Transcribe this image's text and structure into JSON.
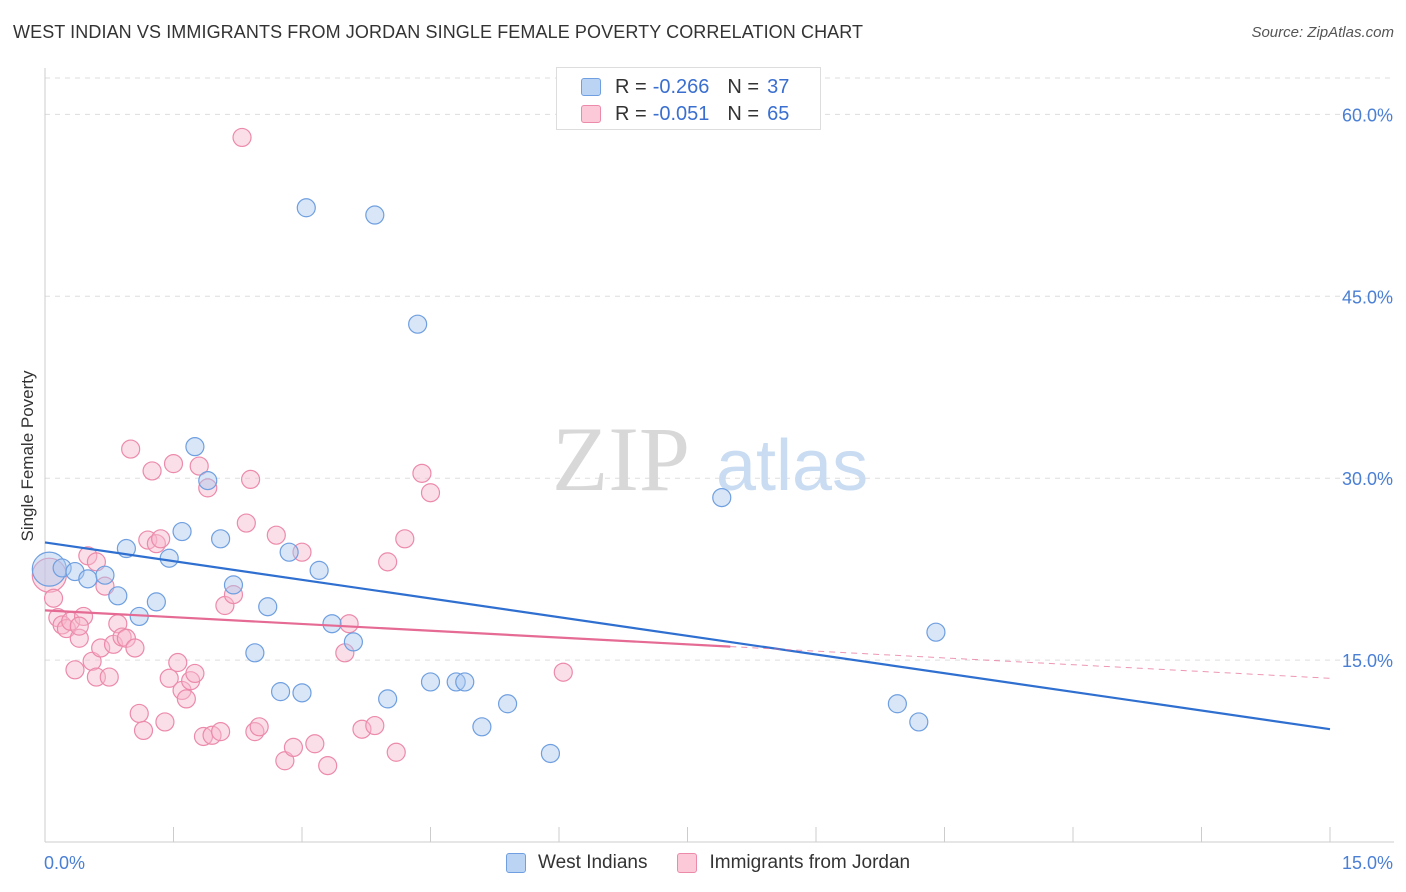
{
  "title": "WEST INDIAN VS IMMIGRANTS FROM JORDAN SINGLE FEMALE POVERTY CORRELATION CHART",
  "source": "Source: ZipAtlas.com",
  "watermark": {
    "zip": "ZIP",
    "atlas": "atlas"
  },
  "colors": {
    "blue_fill": "#a9c8f0",
    "blue_stroke": "#6f9fe0",
    "blue_line": "#2f6fd0",
    "pink_fill": "#f7b8cc",
    "pink_stroke": "#ec8aaa",
    "pink_line": "#e56a94",
    "tick_text": "#4a7fd4",
    "grid": "#dddddd"
  },
  "legend": {
    "rows": [
      {
        "r_label": "R =",
        "r_value": "-0.266",
        "n_label": "N =",
        "n_value": "37"
      },
      {
        "r_label": "R =",
        "r_value": "-0.051",
        "n_label": "N =",
        "n_value": "65"
      }
    ]
  },
  "chart_data": {
    "type": "scatter",
    "title": "WEST INDIAN VS IMMIGRANTS FROM JORDAN SINGLE FEMALE POVERTY CORRELATION CHART",
    "xlabel": "",
    "ylabel": "Single Female Poverty",
    "xlim": [
      0,
      15
    ],
    "ylim": [
      0,
      63
    ],
    "x_tick_labels": [
      "0.0%",
      "15.0%"
    ],
    "y_ticks": [
      {
        "value": 15,
        "label": "15.0%"
      },
      {
        "value": 30,
        "label": "30.0%"
      },
      {
        "value": 45,
        "label": "45.0%"
      },
      {
        "value": 60,
        "label": "60.0%"
      }
    ],
    "series": [
      {
        "name": "West Indians",
        "r": -0.266,
        "n": 37,
        "trend": {
          "x0": 0,
          "y0": 24.7,
          "x1": 15,
          "y1": 9.3,
          "solid_until": 15
        },
        "points": [
          [
            0.05,
            22.5,
            "big"
          ],
          [
            0.2,
            22.6
          ],
          [
            0.35,
            22.3
          ],
          [
            0.5,
            21.7
          ],
          [
            0.7,
            22.0
          ],
          [
            0.85,
            20.3
          ],
          [
            0.95,
            24.2
          ],
          [
            1.1,
            18.6
          ],
          [
            1.3,
            19.8
          ],
          [
            1.45,
            23.4
          ],
          [
            1.6,
            25.6
          ],
          [
            1.75,
            32.6
          ],
          [
            1.9,
            29.8
          ],
          [
            2.05,
            25.0
          ],
          [
            2.2,
            21.2
          ],
          [
            2.45,
            15.6
          ],
          [
            2.6,
            19.4
          ],
          [
            2.75,
            12.4
          ],
          [
            2.85,
            23.9
          ],
          [
            3.0,
            12.3
          ],
          [
            3.05,
            52.3
          ],
          [
            3.2,
            22.4
          ],
          [
            3.35,
            18.0
          ],
          [
            3.6,
            16.5
          ],
          [
            3.85,
            51.7
          ],
          [
            4.0,
            11.8
          ],
          [
            4.35,
            42.7
          ],
          [
            4.5,
            13.2
          ],
          [
            4.8,
            13.2
          ],
          [
            4.9,
            13.2
          ],
          [
            5.1,
            9.5
          ],
          [
            5.4,
            11.4
          ],
          [
            5.9,
            7.3
          ],
          [
            7.9,
            28.4
          ],
          [
            9.95,
            11.4
          ],
          [
            10.2,
            9.9
          ],
          [
            10.4,
            17.3
          ]
        ]
      },
      {
        "name": "Immigrants from Jordan",
        "r": -0.051,
        "n": 65,
        "trend": {
          "x0": 0,
          "y0": 19.1,
          "x1": 15,
          "y1": 13.5,
          "solid_until": 8.0
        },
        "points": [
          [
            0.05,
            22.0,
            "big"
          ],
          [
            0.1,
            20.1
          ],
          [
            0.15,
            18.5
          ],
          [
            0.2,
            17.9
          ],
          [
            0.25,
            17.6
          ],
          [
            0.3,
            18.2
          ],
          [
            0.35,
            14.2
          ],
          [
            0.4,
            16.8
          ],
          [
            0.45,
            18.6
          ],
          [
            0.5,
            23.6
          ],
          [
            0.55,
            14.9
          ],
          [
            0.6,
            13.6
          ],
          [
            0.65,
            16.0
          ],
          [
            0.7,
            21.1
          ],
          [
            0.75,
            13.6
          ],
          [
            0.8,
            16.3
          ],
          [
            0.85,
            18.0
          ],
          [
            0.9,
            16.9
          ],
          [
            0.95,
            16.8
          ],
          [
            1.0,
            32.4
          ],
          [
            1.05,
            16.0
          ],
          [
            1.1,
            10.6
          ],
          [
            1.15,
            9.2
          ],
          [
            1.2,
            24.9
          ],
          [
            1.25,
            30.6
          ],
          [
            1.3,
            24.6
          ],
          [
            1.35,
            25.0
          ],
          [
            1.4,
            9.9
          ],
          [
            1.45,
            13.5
          ],
          [
            1.5,
            31.2
          ],
          [
            1.55,
            14.8
          ],
          [
            1.6,
            12.5
          ],
          [
            1.65,
            11.8
          ],
          [
            1.7,
            13.3
          ],
          [
            1.75,
            13.9
          ],
          [
            1.8,
            31.0
          ],
          [
            1.85,
            8.7
          ],
          [
            1.9,
            29.2
          ],
          [
            1.95,
            8.8
          ],
          [
            2.05,
            9.1
          ],
          [
            2.1,
            19.5
          ],
          [
            2.2,
            20.4
          ],
          [
            2.3,
            58.1
          ],
          [
            2.35,
            26.3
          ],
          [
            2.4,
            29.9
          ],
          [
            2.45,
            9.1
          ],
          [
            2.5,
            9.5
          ],
          [
            2.7,
            25.3
          ],
          [
            2.8,
            6.7
          ],
          [
            2.9,
            7.8
          ],
          [
            3.0,
            23.9
          ],
          [
            3.15,
            8.1
          ],
          [
            3.3,
            6.3
          ],
          [
            3.5,
            15.6
          ],
          [
            3.55,
            18.0
          ],
          [
            3.7,
            9.3
          ],
          [
            3.85,
            9.6
          ],
          [
            4.0,
            23.1
          ],
          [
            4.1,
            7.4
          ],
          [
            4.2,
            25.0
          ],
          [
            4.4,
            30.4
          ],
          [
            4.5,
            28.8
          ],
          [
            6.05,
            14.0
          ],
          [
            0.4,
            17.8
          ],
          [
            0.6,
            23.1
          ]
        ]
      }
    ]
  },
  "bottom_legend": [
    {
      "label": "West Indians"
    },
    {
      "label": "Immigrants from Jordan"
    }
  ]
}
